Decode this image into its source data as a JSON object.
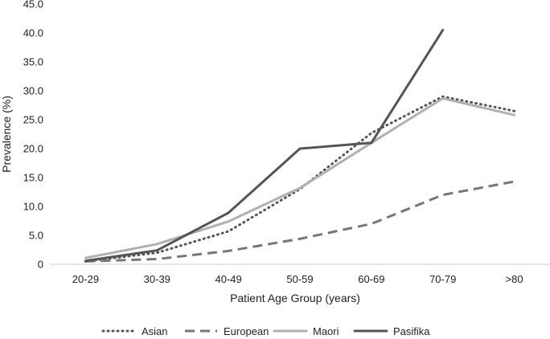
{
  "chart_data": {
    "type": "line",
    "title": "",
    "xlabel": "Patient Age Group (years)",
    "ylabel": "Prevalence (%)",
    "categories": [
      "20-29",
      "30-39",
      "40-49",
      "50-59",
      "60-69",
      "70-79",
      ">80"
    ],
    "ylim": [
      0,
      45
    ],
    "yticks": [
      "0",
      "5.0",
      "10.0",
      "15.0",
      "20.0",
      "25.0",
      "30.0",
      "35.0",
      "40.0",
      "45.0"
    ],
    "grid": false,
    "legend_position": "bottom",
    "series": [
      {
        "name": "Asian",
        "style": "dotted",
        "color": "#555555",
        "values": [
          0.5,
          2.0,
          5.7,
          13.0,
          22.7,
          29.0,
          26.5
        ]
      },
      {
        "name": "European",
        "style": "dashed",
        "color": "#777777",
        "values": [
          0.5,
          0.9,
          2.3,
          4.4,
          7.0,
          12.0,
          14.3
        ]
      },
      {
        "name": "Maori",
        "style": "solid-light",
        "color": "#b0b0b0",
        "values": [
          1.1,
          3.5,
          7.4,
          13.2,
          21.0,
          28.7,
          25.8
        ]
      },
      {
        "name": "Pasifika",
        "style": "solid-dark",
        "color": "#555555",
        "values": [
          0.6,
          2.4,
          8.9,
          20.0,
          21.0,
          40.5,
          null
        ]
      }
    ]
  }
}
